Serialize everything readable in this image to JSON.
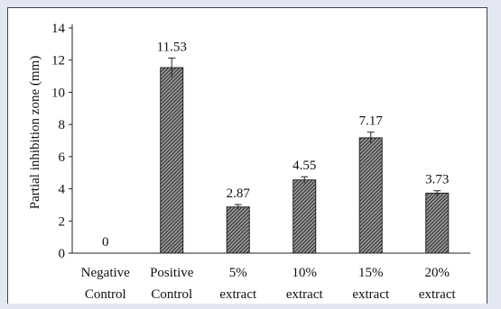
{
  "chart_data": {
    "type": "bar",
    "title": "",
    "xlabel": "",
    "ylabel": "Partial inhibition zone (mm)",
    "ylim": [
      0,
      14
    ],
    "yticks": [
      0,
      2,
      4,
      6,
      8,
      10,
      12,
      14
    ],
    "grid": false,
    "legend": "none",
    "categories": [
      [
        "Negative",
        "Control"
      ],
      [
        "Positive",
        "Control"
      ],
      [
        "5%",
        "extract"
      ],
      [
        "10%",
        "extract"
      ],
      [
        "15%",
        "extract"
      ],
      [
        "20%",
        "extract"
      ]
    ],
    "values": [
      0,
      11.53,
      2.87,
      4.55,
      7.17,
      3.73
    ],
    "value_labels": [
      "0",
      "11.53",
      "2.87",
      "4.55",
      "7.17",
      "3.73"
    ],
    "errors": [
      0,
      0.6,
      0.15,
      0.2,
      0.35,
      0.15
    ],
    "colors": {
      "bar_fill": "#6f6f6f",
      "bar_stroke": "#222222",
      "background": "#e3e7f1",
      "panel": "#ffffff"
    }
  }
}
